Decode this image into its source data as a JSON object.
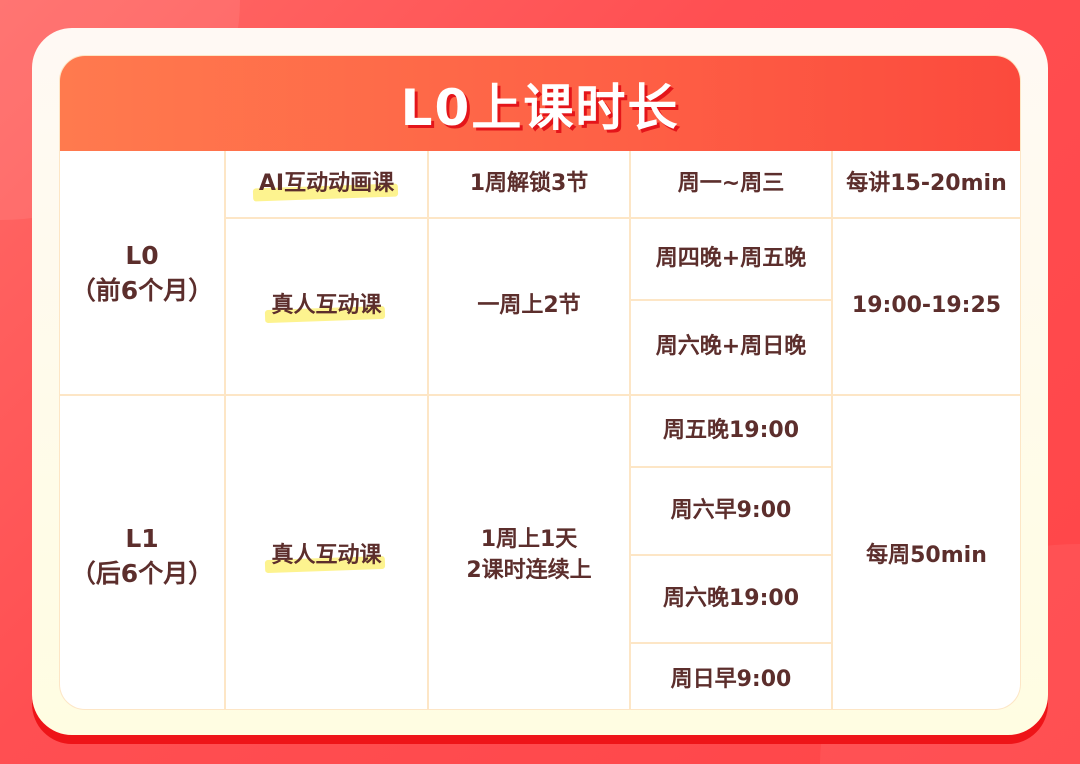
{
  "title": "L0上课时长",
  "colors": {
    "accent": "#fe5f45",
    "text": "#5c2e2c",
    "highlight": "#fdf38f",
    "border": "#fde6c6"
  },
  "l0": {
    "level": "L0",
    "period": "（前6个月）",
    "ai": {
      "type": "AI互动动画课",
      "frequency": "1周解锁3节",
      "days": "周一~周三",
      "duration": "每讲15-20min"
    },
    "live": {
      "type": "真人互动课",
      "frequency": "一周上2节",
      "slots": [
        "周四晚+周五晚",
        "周六晚+周日晚"
      ],
      "time": "19:00-19:25"
    }
  },
  "l1": {
    "level": "L1",
    "period": "（后6个月）",
    "type": "真人互动课",
    "frequency_line1": "1周上1天",
    "frequency_line2": "2课时连续上",
    "slots": [
      "周五晚19:00",
      "周六早9:00",
      "周六晚19:00",
      "周日早9:00"
    ],
    "duration": "每周50min"
  }
}
